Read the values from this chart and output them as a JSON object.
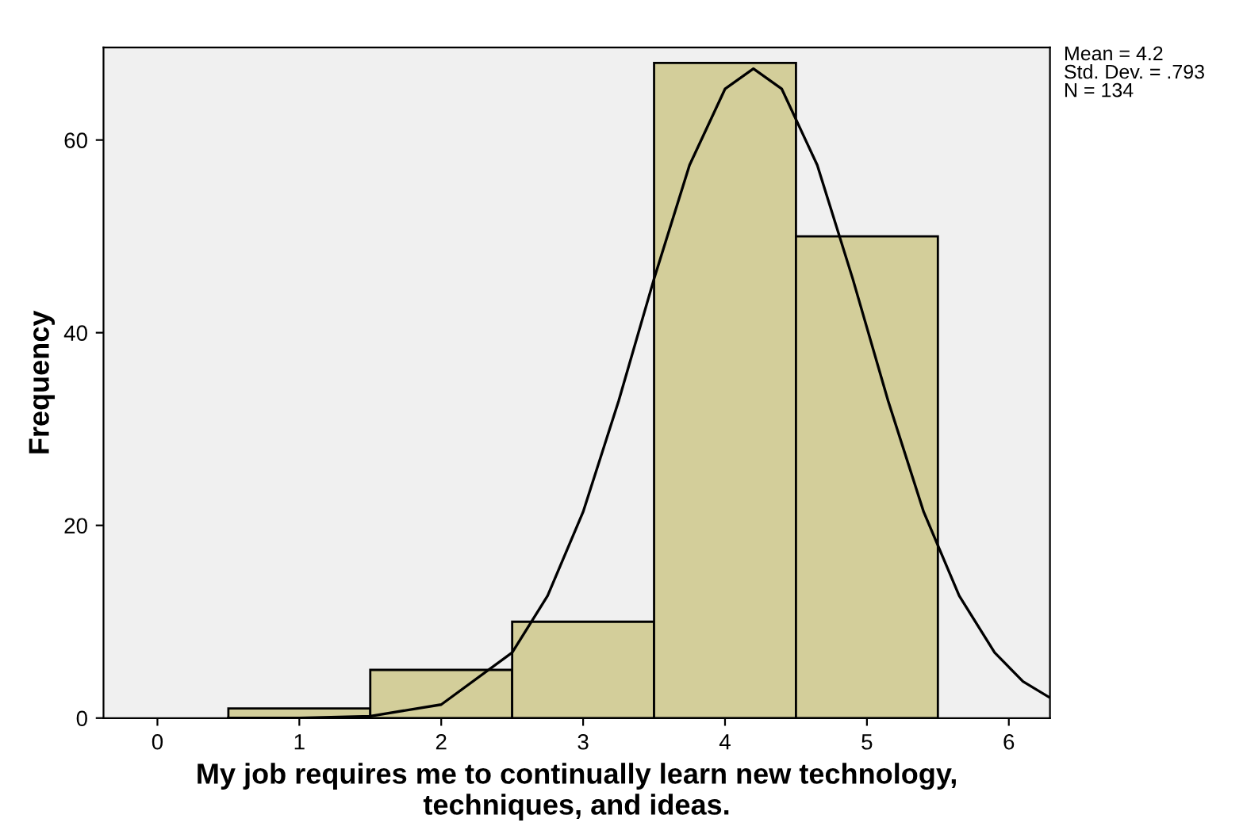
{
  "chart_data": {
    "type": "histogram",
    "xlabel": "My job requires me to continually learn new technology,\ntechniques, and ideas.",
    "ylabel": "Frequency",
    "bins": [
      0.5,
      1.5,
      2.5,
      3.5,
      4.5,
      5.5
    ],
    "values": [
      1,
      5,
      10,
      68,
      50
    ],
    "color": "#d3ce9a",
    "series": [
      {
        "type": "line",
        "color": "#000000",
        "x": [
          0.5,
          1.0,
          1.5,
          2.0,
          2.5,
          2.75,
          3.0,
          3.25,
          3.5,
          3.75,
          4.0,
          4.2,
          4.4,
          4.65,
          4.9,
          5.15,
          5.4,
          5.65,
          5.9,
          6.1,
          6.28
        ],
        "values": [
          0,
          0,
          0.2,
          1.4,
          6.8,
          12.7,
          21.4,
          32.9,
          45.6,
          57.4,
          65.3,
          67.4,
          65.3,
          57.4,
          45.6,
          32.9,
          21.4,
          12.7,
          6.8,
          3.8,
          2.2
        ]
      }
    ],
    "xlim": [
      -0.38,
      6.29
    ],
    "ylim": [
      0,
      69.6
    ],
    "xticks": [
      0,
      1,
      2,
      3,
      4,
      5,
      6
    ],
    "yticks": [
      0,
      20,
      40,
      60
    ],
    "annotations": [
      "Mean = 4.2",
      "Std. Dev. = .793",
      "N = 134"
    ],
    "grid": false,
    "legend": false
  }
}
